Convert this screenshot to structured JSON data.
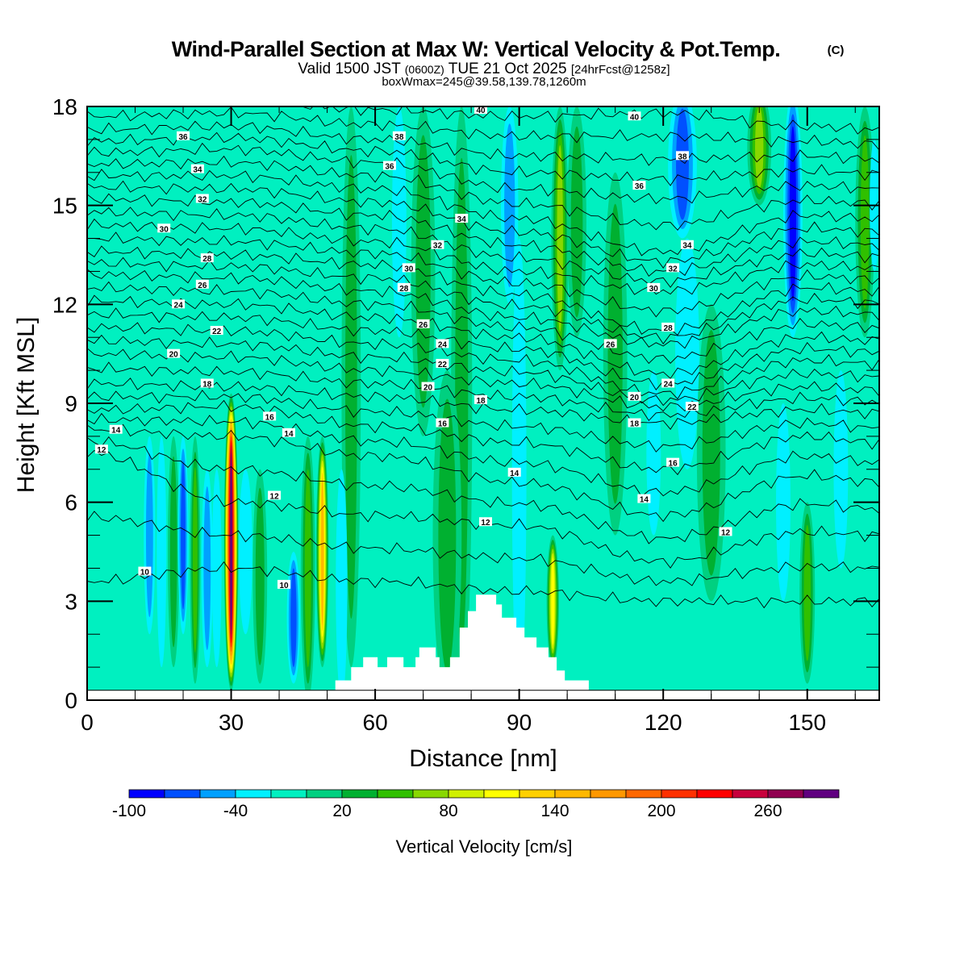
{
  "chart_data": {
    "type": "heatmap",
    "title": "Wind-Parallel Section at Max W: Vertical Velocity & Pot.Temp.",
    "title_mark": "(C)",
    "subtitle_main": "Valid 1500 JST",
    "subtitle_utc": "(0600Z)",
    "subtitle_date": "TUE 21 Oct 2025",
    "subtitle_fcst": "[24hrFcst@1258z]",
    "subtitle2": "boxWmax=245@39.58,139.78,1260m",
    "xlabel": "Distance [nm]",
    "ylabel": "Height [Kft MSL]",
    "xlim": [
      0,
      165
    ],
    "ylim": [
      0,
      18
    ],
    "xticks": [
      0,
      30,
      60,
      90,
      120,
      150
    ],
    "yticks": [
      0,
      3,
      6,
      9,
      12,
      15,
      18
    ],
    "colorbar": {
      "label": "Vertical Velocity [cm/s]",
      "levels": [
        -100,
        -80,
        -60,
        -40,
        -20,
        0,
        20,
        40,
        60,
        80,
        100,
        120,
        140,
        160,
        180,
        200,
        220,
        240,
        260,
        280,
        300
      ],
      "colors": [
        "#0000ff",
        "#0050ff",
        "#00a0ff",
        "#00f0ff",
        "#00f0c0",
        "#00d080",
        "#00b030",
        "#30c000",
        "#88d800",
        "#d0f000",
        "#ffff00",
        "#ffd000",
        "#ffb800",
        "#ff9800",
        "#ff6800",
        "#ff3000",
        "#ff0000",
        "#c8003c",
        "#900050",
        "#600080"
      ],
      "tick_labels": [
        "-100",
        "-40",
        "20",
        "80",
        "140",
        "200",
        "260"
      ],
      "tick_levels": [
        -100,
        -40,
        20,
        80,
        140,
        200,
        260
      ]
    },
    "background_w": -10,
    "w_features": [
      {
        "x": 55,
        "w": 30,
        "y0": 1,
        "y1": 18,
        "hw": 2.0
      },
      {
        "x": 70,
        "w": 30,
        "y0": 8,
        "y1": 18,
        "hw": 2.5
      },
      {
        "x": 78,
        "w": 30,
        "y0": 0,
        "y1": 18,
        "hw": 2.2
      },
      {
        "x": 75,
        "w": 20,
        "y0": 0,
        "y1": 10,
        "hw": 3
      },
      {
        "x": 65,
        "w": -40,
        "y0": 11,
        "y1": 18,
        "hw": 1.5
      },
      {
        "x": 88,
        "w": -60,
        "y0": 12,
        "y1": 18,
        "hw": 1.8
      },
      {
        "x": 90,
        "w": -30,
        "y0": 0,
        "y1": 14,
        "hw": 1.5
      },
      {
        "x": 98.5,
        "w": 70,
        "y0": 10,
        "y1": 18,
        "hw": 1.8
      },
      {
        "x": 102,
        "w": 30,
        "y0": 11,
        "y1": 18,
        "hw": 2
      },
      {
        "x": 97,
        "w": 100,
        "y0": 1,
        "y1": 5,
        "hw": 1.3
      },
      {
        "x": 110,
        "w": 30,
        "y0": 5,
        "y1": 16,
        "hw": 2.5
      },
      {
        "x": 124,
        "w": -80,
        "y0": 14,
        "y1": 18.5,
        "hw": 3
      },
      {
        "x": 125,
        "w": -40,
        "y0": 7,
        "y1": 14,
        "hw": 2.5
      },
      {
        "x": 118,
        "w": -40,
        "y0": 5,
        "y1": 10,
        "hw": 1.5
      },
      {
        "x": 130,
        "w": 30,
        "y0": 3,
        "y1": 12,
        "hw": 3
      },
      {
        "x": 140,
        "w": 70,
        "y0": 15,
        "y1": 18.5,
        "hw": 2.5
      },
      {
        "x": 145,
        "w": -40,
        "y0": 3,
        "y1": 9,
        "hw": 1.5
      },
      {
        "x": 147,
        "w": -90,
        "y0": 11,
        "y1": 18.5,
        "hw": 2
      },
      {
        "x": 150,
        "w": 40,
        "y0": 0.5,
        "y1": 6,
        "hw": 1.6
      },
      {
        "x": 157,
        "w": -40,
        "y0": 4,
        "y1": 10,
        "hw": 1.5
      },
      {
        "x": 162,
        "w": 40,
        "y0": 11,
        "y1": 18,
        "hw": 2
      },
      {
        "x": 164,
        "w": -40,
        "y0": 13,
        "y1": 17,
        "hw": 1
      },
      {
        "x": 13,
        "w": -60,
        "y0": 2,
        "y1": 8,
        "hw": 1.2
      },
      {
        "x": 15.5,
        "w": -30,
        "y0": 1,
        "y1": 8,
        "hw": 1
      },
      {
        "x": 18,
        "w": 30,
        "y0": 1,
        "y1": 8,
        "hw": 1.2
      },
      {
        "x": 20,
        "w": -70,
        "y0": 2,
        "y1": 8,
        "hw": 1.1
      },
      {
        "x": 22.5,
        "w": 40,
        "y0": 0.5,
        "y1": 8,
        "hw": 1.1
      },
      {
        "x": 25,
        "w": -60,
        "y0": 1,
        "y1": 7,
        "hw": 1.2
      },
      {
        "x": 27,
        "w": -30,
        "y0": 1,
        "y1": 7,
        "hw": 1
      },
      {
        "x": 33,
        "w": -40,
        "y0": 2,
        "y1": 7,
        "hw": 1.4
      },
      {
        "x": 36,
        "w": 30,
        "y0": 0.5,
        "y1": 7,
        "hw": 1.5
      },
      {
        "x": 46,
        "w": 40,
        "y0": 0,
        "y1": 8,
        "hw": 1.5
      },
      {
        "x": 43,
        "w": -70,
        "y0": 0.5,
        "y1": 4.5,
        "hw": 1.4
      },
      {
        "x": 53,
        "w": -40,
        "y0": 0,
        "y1": 7,
        "hw": 1.2
      },
      {
        "x": 49,
        "w": 140,
        "y0": 1,
        "y1": 8,
        "hw": 1.3
      },
      {
        "x": 30,
        "w": 280,
        "y0": 0.3,
        "y1": 9.3,
        "hw": 1.5
      }
    ],
    "theta_columns_x": [
      0,
      30,
      60,
      90,
      120,
      150,
      165
    ],
    "theta_levels_even": [
      10,
      12,
      14,
      16,
      18,
      20,
      22,
      24,
      26,
      28,
      30,
      32,
      34,
      36,
      38,
      40
    ],
    "theta_heights": [
      [
        3.6,
        7.5,
        8.2,
        8.8,
        9.6,
        10.5,
        11.3,
        12.1,
        12.9,
        13.6,
        14.4,
        15.2,
        15.9,
        16.6,
        17.3,
        18.1
      ],
      [
        4.0,
        6.0,
        8.0,
        8.9,
        9.5,
        10.4,
        11.2,
        12.0,
        12.8,
        13.5,
        14.3,
        15.1,
        15.9,
        16.7,
        17.4,
        18.2
      ],
      [
        3.6,
        5.6,
        7.4,
        8.3,
        9.2,
        10.0,
        10.8,
        11.6,
        12.4,
        13.2,
        13.9,
        14.7,
        15.5,
        16.3,
        17.0,
        17.9
      ],
      [
        3.3,
        5.3,
        6.6,
        7.8,
        8.8,
        9.6,
        10.3,
        11.0,
        11.6,
        12.3,
        13.0,
        13.8,
        14.6,
        15.5,
        16.5,
        17.7
      ],
      [
        3.0,
        4.2,
        5.6,
        7.0,
        8.4,
        8.9,
        9.3,
        9.9,
        10.8,
        11.2,
        12.4,
        13.0,
        13.6,
        15.2,
        16.4,
        17.8
      ],
      [
        3.0,
        5.1,
        6.8,
        8.0,
        8.8,
        9.5,
        10.3,
        11.0,
        11.8,
        12.5,
        13.2,
        13.9,
        14.7,
        15.6,
        16.5,
        17.4
      ],
      [
        3.0,
        5.0,
        6.6,
        7.8,
        8.7,
        9.4,
        10.2,
        10.9,
        11.7,
        12.4,
        13.1,
        13.8,
        14.6,
        15.5,
        16.4,
        17.3
      ]
    ],
    "contour_labels": [
      {
        "t": "36",
        "x": 20,
        "y": 17.1
      },
      {
        "t": "34",
        "x": 23,
        "y": 16.1
      },
      {
        "t": "32",
        "x": 24,
        "y": 15.2
      },
      {
        "t": "30",
        "x": 16,
        "y": 14.3
      },
      {
        "t": "28",
        "x": 25,
        "y": 13.4
      },
      {
        "t": "26",
        "x": 24,
        "y": 12.6
      },
      {
        "t": "24",
        "x": 19,
        "y": 12.0
      },
      {
        "t": "22",
        "x": 27,
        "y": 11.2
      },
      {
        "t": "20",
        "x": 18,
        "y": 10.5
      },
      {
        "t": "18",
        "x": 25,
        "y": 9.6
      },
      {
        "t": "16",
        "x": 38,
        "y": 8.6
      },
      {
        "t": "14",
        "x": 6,
        "y": 8.2
      },
      {
        "t": "14",
        "x": 42,
        "y": 8.1
      },
      {
        "t": "12",
        "x": 3,
        "y": 7.6
      },
      {
        "t": "12",
        "x": 39,
        "y": 6.2
      },
      {
        "t": "10",
        "x": 12,
        "y": 3.9
      },
      {
        "t": "10",
        "x": 41,
        "y": 3.5
      },
      {
        "t": "40",
        "x": 82,
        "y": 17.9
      },
      {
        "t": "38",
        "x": 65,
        "y": 17.1
      },
      {
        "t": "36",
        "x": 63,
        "y": 16.2
      },
      {
        "t": "34",
        "x": 78,
        "y": 14.6
      },
      {
        "t": "32",
        "x": 73,
        "y": 13.8
      },
      {
        "t": "30",
        "x": 67,
        "y": 13.1
      },
      {
        "t": "28",
        "x": 66,
        "y": 12.5
      },
      {
        "t": "26",
        "x": 70,
        "y": 11.4
      },
      {
        "t": "24",
        "x": 74,
        "y": 10.8
      },
      {
        "t": "22",
        "x": 74,
        "y": 10.2
      },
      {
        "t": "20",
        "x": 71,
        "y": 9.5
      },
      {
        "t": "18",
        "x": 82,
        "y": 9.1
      },
      {
        "t": "16",
        "x": 74,
        "y": 8.4
      },
      {
        "t": "14",
        "x": 89,
        "y": 6.9
      },
      {
        "t": "12",
        "x": 83,
        "y": 5.4
      },
      {
        "t": "40",
        "x": 114,
        "y": 17.7
      },
      {
        "t": "38",
        "x": 124,
        "y": 16.5
      },
      {
        "t": "36",
        "x": 115,
        "y": 15.6
      },
      {
        "t": "34",
        "x": 125,
        "y": 13.8
      },
      {
        "t": "32",
        "x": 122,
        "y": 13.1
      },
      {
        "t": "30",
        "x": 118,
        "y": 12.5
      },
      {
        "t": "28",
        "x": 121,
        "y": 11.3
      },
      {
        "t": "26",
        "x": 109,
        "y": 10.8
      },
      {
        "t": "24",
        "x": 121,
        "y": 9.6
      },
      {
        "t": "22",
        "x": 126,
        "y": 8.9
      },
      {
        "t": "20",
        "x": 114,
        "y": 9.2
      },
      {
        "t": "18",
        "x": 114,
        "y": 8.4
      },
      {
        "t": "16",
        "x": 122,
        "y": 7.2
      },
      {
        "t": "14",
        "x": 116,
        "y": 6.1
      },
      {
        "t": "12",
        "x": 133,
        "y": 5.1
      }
    ],
    "terrain_steps": [
      [
        51.7,
        0.6
      ],
      [
        55,
        1.0
      ],
      [
        57.5,
        1.3
      ],
      [
        60.5,
        1.0
      ],
      [
        62.5,
        1.3
      ],
      [
        65.9,
        1.0
      ],
      [
        68.4,
        1.3
      ],
      [
        69.2,
        1.6
      ],
      [
        72.6,
        1.3
      ],
      [
        73.4,
        1.0
      ],
      [
        75.6,
        1.3
      ],
      [
        77.6,
        2.2
      ],
      [
        79.3,
        2.7
      ],
      [
        81,
        3.2
      ],
      [
        85.2,
        2.9
      ],
      [
        86.4,
        2.5
      ],
      [
        89.4,
        2.2
      ],
      [
        91.1,
        1.9
      ],
      [
        93.6,
        1.6
      ],
      [
        96.1,
        1.3
      ],
      [
        97.8,
        0.9
      ],
      [
        99.5,
        0.6
      ],
      [
        104.5,
        0.3
      ]
    ],
    "terrain_base": 0.3
  }
}
